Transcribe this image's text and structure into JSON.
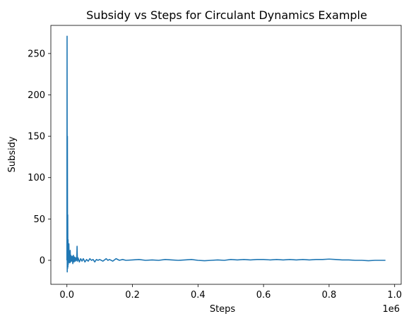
{
  "chart_data": {
    "type": "line",
    "title": "Subsidy vs Steps for Circulant Dynamics Example",
    "xlabel": "Steps",
    "ylabel": "Subsidy",
    "x_offset_label": "1e6",
    "xlim": [
      -0.049,
      1.02
    ],
    "ylim": [
      -29,
      284
    ],
    "x_ticks": [
      0.0,
      0.2,
      0.4,
      0.6,
      0.8,
      1.0
    ],
    "x_tick_labels": [
      "0.0",
      "0.2",
      "0.4",
      "0.6",
      "0.8",
      "1.0"
    ],
    "y_ticks": [
      0,
      50,
      100,
      150,
      200,
      250
    ],
    "y_tick_labels": [
      "0",
      "50",
      "100",
      "150",
      "200",
      "250"
    ],
    "grid": false,
    "series": [
      {
        "color": "#1f77b4",
        "x": [
          0.0,
          0.0005,
          0.001,
          0.0015,
          0.002,
          0.0025,
          0.003,
          0.0035,
          0.004,
          0.0045,
          0.005,
          0.006,
          0.007,
          0.008,
          0.009,
          0.01,
          0.011,
          0.012,
          0.014,
          0.016,
          0.018,
          0.02,
          0.022,
          0.024,
          0.026,
          0.028,
          0.03,
          0.031,
          0.032,
          0.034,
          0.038,
          0.042,
          0.046,
          0.05,
          0.055,
          0.06,
          0.065,
          0.07,
          0.075,
          0.08,
          0.085,
          0.09,
          0.095,
          0.1,
          0.11,
          0.12,
          0.125,
          0.13,
          0.14,
          0.15,
          0.16,
          0.17,
          0.18,
          0.2,
          0.22,
          0.24,
          0.26,
          0.28,
          0.3,
          0.32,
          0.34,
          0.36,
          0.38,
          0.4,
          0.42,
          0.44,
          0.46,
          0.48,
          0.5,
          0.52,
          0.54,
          0.56,
          0.58,
          0.6,
          0.62,
          0.64,
          0.66,
          0.68,
          0.7,
          0.72,
          0.74,
          0.76,
          0.78,
          0.8,
          0.82,
          0.84,
          0.86,
          0.88,
          0.9,
          0.92,
          0.94,
          0.96,
          0.972
        ],
        "y": [
          0,
          271,
          -14,
          150,
          -10,
          55,
          -8,
          25,
          -5,
          20,
          -3,
          20,
          -2,
          8,
          -3,
          12,
          -2,
          6,
          -1,
          5,
          -4,
          6,
          -2,
          4,
          -1,
          3,
          0,
          17,
          -1,
          3,
          -2,
          2,
          -1,
          2,
          -2,
          1,
          -1,
          2,
          0,
          1,
          -2,
          1,
          0,
          1,
          -1,
          2,
          0,
          1,
          -1,
          2,
          0,
          1,
          0,
          0.5,
          1,
          0,
          0.5,
          0,
          1,
          0.5,
          0,
          0.5,
          1,
          0,
          -0.5,
          0,
          0.5,
          0,
          1,
          0.5,
          1,
          0.5,
          1,
          1,
          0.5,
          1,
          0.5,
          1,
          0.5,
          1,
          0.5,
          1,
          1,
          1.5,
          1,
          0.5,
          0.5,
          0,
          0,
          -0.5,
          0,
          0,
          0
        ]
      }
    ]
  }
}
